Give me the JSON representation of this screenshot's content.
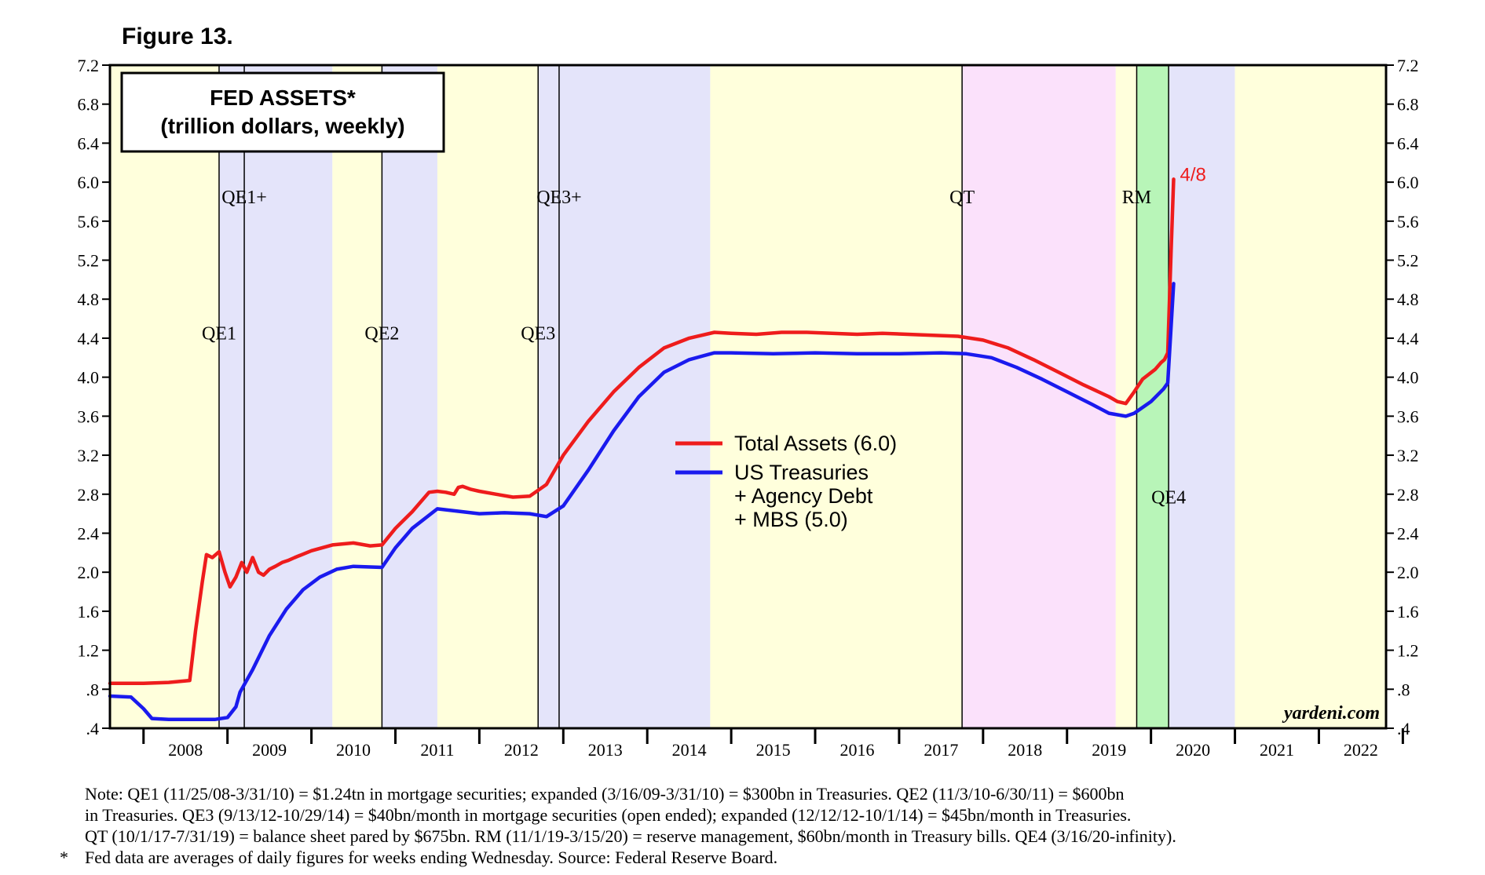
{
  "figure_label": "Figure 13.",
  "chart_data": {
    "type": "line",
    "title": "FED ASSETS*",
    "subtitle": "(trillion dollars, weekly)",
    "ylim": [
      0.4,
      7.2
    ],
    "yticks": [
      ".4",
      ".8",
      "1.2",
      "1.6",
      "2.0",
      "2.4",
      "2.8",
      "3.2",
      "3.6",
      "4.0",
      "4.4",
      "4.8",
      "5.2",
      "5.6",
      "6.0",
      "6.4",
      "6.8",
      "7.2"
    ],
    "xlim": [
      2007.6,
      2022.8
    ],
    "xticks": [
      "2008",
      "2009",
      "2010",
      "2011",
      "2012",
      "2013",
      "2014",
      "2015",
      "2016",
      "2017",
      "2018",
      "2019",
      "2020",
      "2021",
      "2022"
    ],
    "colors": {
      "yellow": "#ffffdc",
      "blue": "#e4e4fa",
      "pink": "#fbe1fb",
      "green": "#b8f5b8",
      "total": "#ee1c1c",
      "treas": "#1a1aee"
    },
    "bands": [
      {
        "start": 2007.6,
        "end": 2008.9,
        "color": "yellow"
      },
      {
        "start": 2008.9,
        "end": 2010.25,
        "color": "blue"
      },
      {
        "start": 2010.25,
        "end": 2010.84,
        "color": "yellow"
      },
      {
        "start": 2010.84,
        "end": 2011.5,
        "color": "blue"
      },
      {
        "start": 2011.5,
        "end": 2012.7,
        "color": "yellow"
      },
      {
        "start": 2012.7,
        "end": 2014.75,
        "color": "blue"
      },
      {
        "start": 2014.75,
        "end": 2017.75,
        "color": "yellow"
      },
      {
        "start": 2017.75,
        "end": 2019.58,
        "color": "pink"
      },
      {
        "start": 2019.58,
        "end": 2019.83,
        "color": "yellow"
      },
      {
        "start": 2019.83,
        "end": 2020.21,
        "color": "green"
      },
      {
        "start": 2020.21,
        "end": 2021.0,
        "color": "blue"
      },
      {
        "start": 2021.0,
        "end": 2022.8,
        "color": "yellow"
      }
    ],
    "events": [
      {
        "label": "QE1",
        "x": 2008.9,
        "y": 4.45
      },
      {
        "label": "QE1+",
        "x": 2009.2,
        "y": 5.85
      },
      {
        "label": "QE2",
        "x": 2010.84,
        "y": 4.45
      },
      {
        "label": "QE3",
        "x": 2012.7,
        "y": 4.45
      },
      {
        "label": "QE3+",
        "x": 2012.95,
        "y": 5.85
      },
      {
        "label": "QT",
        "x": 2017.75,
        "y": 5.85
      },
      {
        "label": "RM",
        "x": 2019.83,
        "y": 5.85
      },
      {
        "label": "QE4",
        "x": 2020.21,
        "y": 2.77
      }
    ],
    "series": [
      {
        "name": "Total Assets (6.0)",
        "color": "total",
        "x": [
          2007.6,
          2007.8,
          2008.0,
          2008.3,
          2008.55,
          2008.62,
          2008.7,
          2008.75,
          2008.82,
          2008.9,
          2008.97,
          2009.03,
          2009.1,
          2009.17,
          2009.23,
          2009.3,
          2009.37,
          2009.43,
          2009.5,
          2009.57,
          2009.65,
          2009.72,
          2009.8,
          2010.0,
          2010.25,
          2010.5,
          2010.7,
          2010.84,
          2011.0,
          2011.2,
          2011.4,
          2011.5,
          2011.6,
          2011.7,
          2011.75,
          2011.8,
          2011.9,
          2012.0,
          2012.2,
          2012.4,
          2012.6,
          2012.8,
          2013.0,
          2013.3,
          2013.6,
          2013.9,
          2014.2,
          2014.5,
          2014.8,
          2015.0,
          2015.3,
          2015.6,
          2015.9,
          2016.2,
          2016.5,
          2016.8,
          2017.1,
          2017.4,
          2017.7,
          2018.0,
          2018.3,
          2018.6,
          2018.9,
          2019.2,
          2019.5,
          2019.6,
          2019.7,
          2019.8,
          2019.9,
          2020.05,
          2020.12,
          2020.16,
          2020.2,
          2020.24,
          2020.27
        ],
        "y": [
          0.86,
          0.86,
          0.86,
          0.87,
          0.89,
          1.4,
          1.9,
          2.18,
          2.15,
          2.21,
          2.0,
          1.85,
          1.95,
          2.1,
          2.0,
          2.15,
          2.0,
          1.97,
          2.03,
          2.06,
          2.1,
          2.12,
          2.15,
          2.22,
          2.28,
          2.3,
          2.27,
          2.28,
          2.45,
          2.62,
          2.82,
          2.83,
          2.82,
          2.8,
          2.87,
          2.88,
          2.85,
          2.83,
          2.8,
          2.77,
          2.78,
          2.9,
          3.2,
          3.55,
          3.85,
          4.1,
          4.3,
          4.4,
          4.46,
          4.45,
          4.44,
          4.46,
          4.46,
          4.45,
          4.44,
          4.45,
          4.44,
          4.43,
          4.42,
          4.38,
          4.3,
          4.18,
          4.05,
          3.92,
          3.8,
          3.75,
          3.73,
          3.85,
          3.98,
          4.08,
          4.15,
          4.18,
          4.25,
          5.3,
          6.03
        ]
      },
      {
        "name": "US Treasuries + Agency Debt + MBS (5.0)",
        "color": "treas",
        "x": [
          2007.6,
          2007.85,
          2008.0,
          2008.1,
          2008.3,
          2008.6,
          2008.85,
          2009.0,
          2009.1,
          2009.15,
          2009.3,
          2009.5,
          2009.7,
          2009.9,
          2010.1,
          2010.3,
          2010.5,
          2010.84,
          2011.0,
          2011.2,
          2011.5,
          2011.7,
          2012.0,
          2012.3,
          2012.6,
          2012.8,
          2013.0,
          2013.3,
          2013.6,
          2013.9,
          2014.2,
          2014.5,
          2014.8,
          2015.0,
          2015.5,
          2016.0,
          2016.5,
          2017.0,
          2017.5,
          2017.8,
          2018.1,
          2018.4,
          2018.7,
          2019.0,
          2019.3,
          2019.5,
          2019.7,
          2019.8,
          2020.0,
          2020.15,
          2020.2,
          2020.27
        ],
        "y": [
          0.73,
          0.72,
          0.6,
          0.5,
          0.49,
          0.49,
          0.49,
          0.51,
          0.62,
          0.77,
          1.0,
          1.35,
          1.62,
          1.82,
          1.95,
          2.03,
          2.06,
          2.05,
          2.25,
          2.45,
          2.65,
          2.63,
          2.6,
          2.61,
          2.6,
          2.57,
          2.68,
          3.05,
          3.45,
          3.8,
          4.05,
          4.18,
          4.25,
          4.25,
          4.24,
          4.25,
          4.24,
          4.24,
          4.25,
          4.24,
          4.2,
          4.1,
          3.98,
          3.85,
          3.72,
          3.63,
          3.6,
          3.63,
          3.75,
          3.88,
          3.94,
          4.96
        ]
      }
    ],
    "end_label": "4/8",
    "legend": {
      "total_label": "Total Assets (6.0)",
      "treas_label_1": "US Treasuries",
      "treas_label_2": "+ Agency Debt",
      "treas_label_3": "+ MBS (5.0)"
    },
    "watermark": "yardeni.com"
  },
  "notes": {
    "line1": "Note: QE1 (11/25/08-3/31/10) = $1.24tn in mortgage securities; expanded (3/16/09-3/31/10) = $300bn in Treasuries. QE2 (11/3/10-6/30/11) = $600bn",
    "line2": "in Treasuries. QE3 (9/13/12-10/29/14) = $40bn/month in mortgage securities (open ended); expanded (12/12/12-10/1/14) = $45bn/month in Treasuries.",
    "line3": "QT (10/1/17-7/31/19) = balance sheet pared by $675bn. RM (11/1/19-3/15/20) = reserve management, $60bn/month in Treasury bills. QE4 (3/16/20-infinity).",
    "star": "*",
    "line4": "Fed data are averages of daily figures for weeks ending Wednesday. Source: Federal Reserve Board."
  }
}
